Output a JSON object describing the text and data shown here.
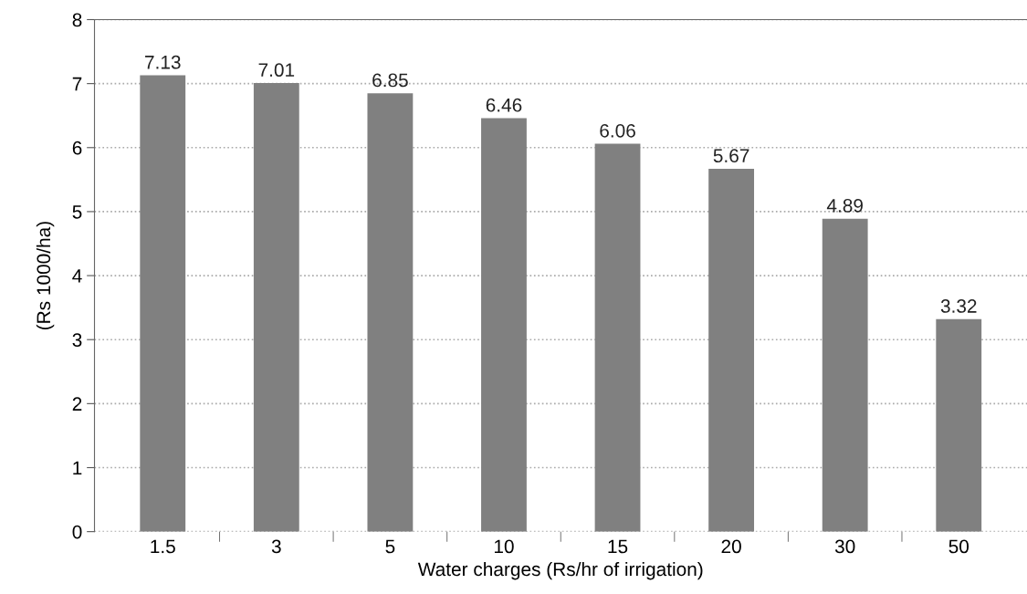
{
  "chart_data": {
    "type": "bar",
    "xlabel": "Water charges (Rs/hr of irrigation)",
    "ylabel": "(Rs 1000/ha)",
    "categories": [
      "1.5",
      "3",
      "5",
      "10",
      "15",
      "20",
      "30",
      "50"
    ],
    "values": [
      7.13,
      7.01,
      6.85,
      6.46,
      6.06,
      5.67,
      4.89,
      3.32
    ],
    "value_labels": [
      "7.13",
      "7.01",
      "6.85",
      "6.46",
      "6.06",
      "5.67",
      "4.89",
      "3.32"
    ],
    "color": "#808080",
    "ylim": [
      0,
      8
    ],
    "yticks": [
      0,
      1,
      2,
      3,
      4,
      5,
      6,
      7,
      8
    ],
    "grid": "y"
  }
}
